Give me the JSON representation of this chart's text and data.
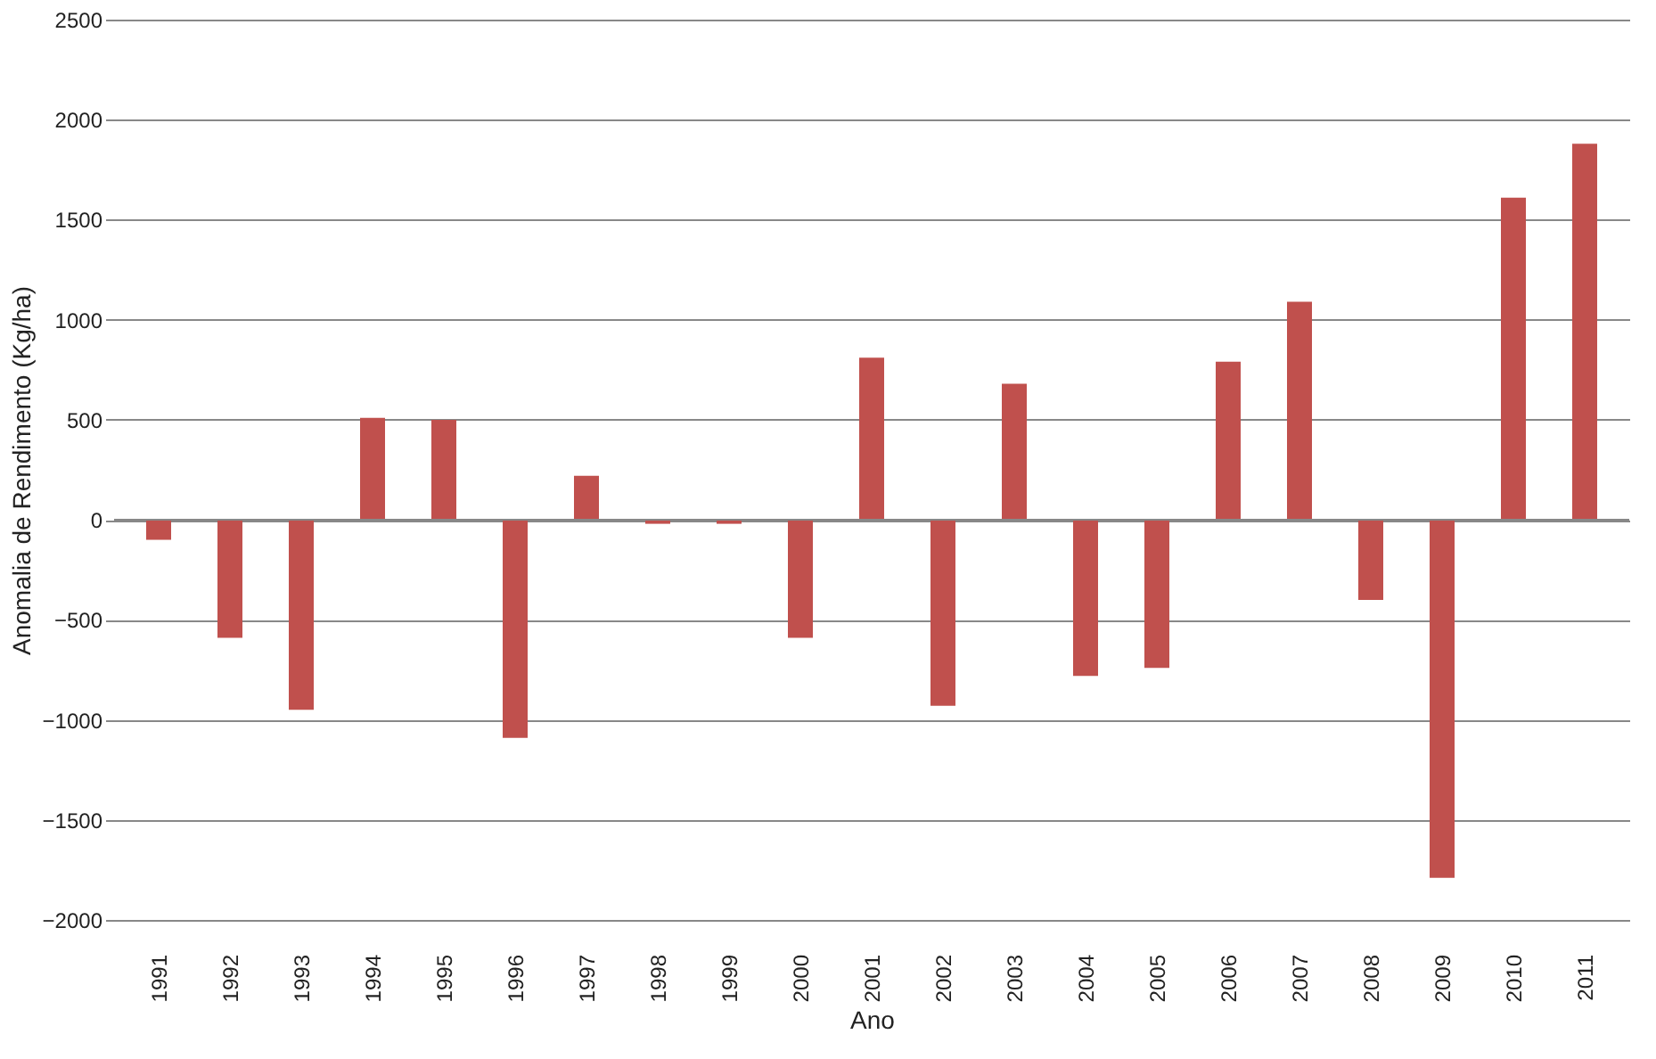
{
  "chart_data": {
    "type": "bar",
    "xlabel": "Ano",
    "ylabel": "Anomalia de Rendimento (Kg/ha)",
    "categories": [
      "1991",
      "1992",
      "1993",
      "1994",
      "1995",
      "1996",
      "1997",
      "1998",
      "1999",
      "2000",
      "2001",
      "2002",
      "2003",
      "2004",
      "2005",
      "2006",
      "2007",
      "2008",
      "2009",
      "2010",
      "2011"
    ],
    "values": [
      -100,
      -590,
      -950,
      510,
      500,
      -1090,
      220,
      -20,
      -20,
      -590,
      810,
      -930,
      680,
      -780,
      -740,
      790,
      1090,
      -400,
      -1790,
      1610,
      1880
    ],
    "color": "#c0504d",
    "ylim": [
      -2000,
      2500
    ],
    "yticks": [
      -2000,
      -1500,
      -1000,
      -500,
      0,
      500,
      1000,
      1500,
      2000,
      2500
    ],
    "grid": "y"
  }
}
